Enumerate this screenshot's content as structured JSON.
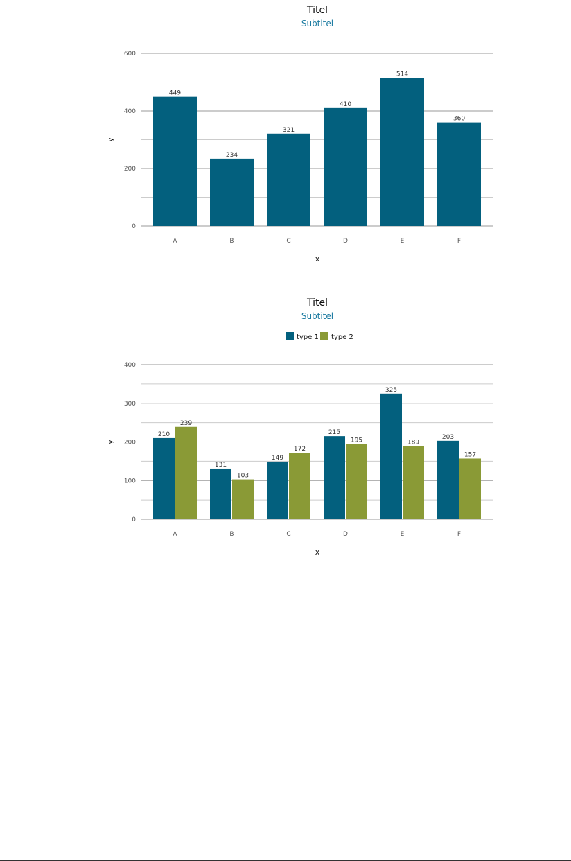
{
  "colors": {
    "series1": "#03607e",
    "series2": "#8a9a36",
    "subtitle": "#1a7aa0",
    "grid_major": "#9a9a9a",
    "grid_minor": "#cccccc"
  },
  "chart_data": [
    {
      "type": "bar",
      "title": "Titel",
      "subtitle": "Subtitel",
      "xlabel": "x",
      "ylabel": "y",
      "categories": [
        "A",
        "B",
        "C",
        "D",
        "E",
        "F"
      ],
      "values": [
        449,
        234,
        321,
        410,
        514,
        360
      ],
      "ylim": [
        0,
        600
      ],
      "yticks": [
        0,
        200,
        400,
        600
      ],
      "grid": true,
      "data_labels": true
    },
    {
      "type": "bar",
      "title": "Titel",
      "subtitle": "Subtitel",
      "xlabel": "x",
      "ylabel": "y",
      "categories": [
        "A",
        "B",
        "C",
        "D",
        "E",
        "F"
      ],
      "series": [
        {
          "name": "type 1",
          "values": [
            210,
            131,
            149,
            215,
            325,
            203
          ]
        },
        {
          "name": "type 2",
          "values": [
            239,
            103,
            172,
            195,
            189,
            157
          ]
        }
      ],
      "ylim": [
        0,
        400
      ],
      "yticks": [
        0,
        100,
        200,
        300,
        400
      ],
      "grid": true,
      "legend": "top",
      "data_labels": true
    }
  ]
}
